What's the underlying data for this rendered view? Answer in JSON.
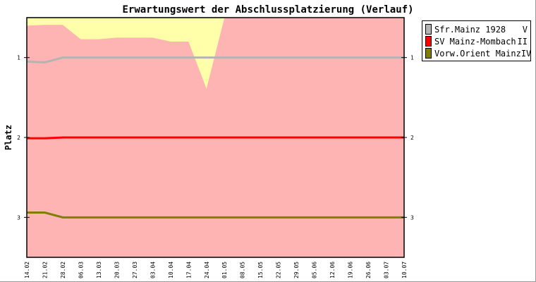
{
  "chart_data": {
    "type": "line",
    "title": "Erwartungswert der Abschlussplatzierung (Verlauf)",
    "ylabel": "Platz",
    "ylim": [
      3.5,
      0.5
    ],
    "yticks": [
      "1",
      "2",
      "3"
    ],
    "categories": [
      "14.02",
      "21.02",
      "28.02",
      "06.03",
      "13.03",
      "20.03",
      "27.03",
      "03.04",
      "10.04",
      "17.04",
      "24.04",
      "01.05",
      "08.05",
      "15.05",
      "22.05",
      "29.05",
      "05.06",
      "12.06",
      "19.06",
      "26.06",
      "03.07",
      "10.07"
    ],
    "areas": [
      {
        "color": "#ffffaa",
        "values": [
          0.5,
          0.5,
          0.5,
          0.5,
          0.5,
          0.5,
          0.5,
          0.5,
          0.5,
          0.5,
          0.5,
          0.5,
          0.5,
          0.5,
          0.5,
          0.5,
          0.5,
          0.5,
          0.5,
          0.5,
          0.5,
          0.5
        ]
      },
      {
        "color": "#ffb4b4",
        "values": [
          0.6,
          0.59,
          0.59,
          0.77,
          0.77,
          0.75,
          0.75,
          0.75,
          0.8,
          0.8,
          1.39,
          0.5,
          0.5,
          0.5,
          0.5,
          0.5,
          0.5,
          0.5,
          0.5,
          0.5,
          0.5,
          0.5
        ]
      }
    ],
    "series": [
      {
        "name": "Sfr.Mainz 1928",
        "rank": "V",
        "color": "#b4b4b4",
        "values": [
          1.05,
          1.06,
          1,
          1,
          1,
          1,
          1,
          1,
          1,
          1,
          1,
          1,
          1,
          1,
          1,
          1,
          1,
          1,
          1,
          1,
          1,
          1
        ]
      },
      {
        "name": "SV Mainz-Mombach",
        "rank": "II",
        "color": "#ff0000",
        "values": [
          2.01,
          2.01,
          2,
          2,
          2,
          2,
          2,
          2,
          2,
          2,
          2,
          2,
          2,
          2,
          2,
          2,
          2,
          2,
          2,
          2,
          2,
          2
        ]
      },
      {
        "name": "Vorw.Orient Mainz",
        "rank": "IV",
        "color": "#7f7f00",
        "values": [
          2.94,
          2.94,
          3,
          3,
          3,
          3,
          3,
          3,
          3,
          3,
          3,
          3,
          3,
          3,
          3,
          3,
          3,
          3,
          3,
          3,
          3,
          3
        ]
      }
    ],
    "legend": "right"
  }
}
